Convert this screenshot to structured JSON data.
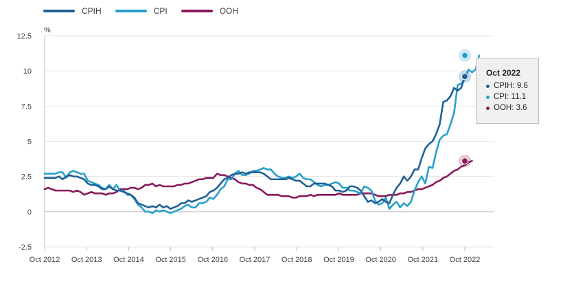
{
  "chart_data": {
    "type": "line",
    "title": "",
    "ylabel": "%",
    "xlabel": "",
    "ylim": [
      -2.5,
      12.5
    ],
    "yticks": [
      -2.5,
      0,
      2.5,
      5,
      7.5,
      10,
      12.5
    ],
    "ytick_labels": [
      "-2.5",
      "0",
      "2.5",
      "5",
      "7.5",
      "10",
      "12.5"
    ],
    "xtick_labels": [
      "Oct 2012",
      "Oct 2013",
      "Oct 2014",
      "Oct 2015",
      "Oct 2016",
      "Oct 2017",
      "Oct 2018",
      "Oct 2019",
      "Oct 2020",
      "Oct 2021",
      "Oct 2022"
    ],
    "grid": "horizontal",
    "legend_position": "top-left",
    "series": [
      {
        "name": "CPIH",
        "color": "#206095",
        "values": [
          2.4,
          2.4,
          2.4,
          2.4,
          2.5,
          2.3,
          2.5,
          2.6,
          2.5,
          2.5,
          2.4,
          2.3,
          2.0,
          1.9,
          1.9,
          1.8,
          1.6,
          1.6,
          1.8,
          1.6,
          1.5,
          1.5,
          1.4,
          1.3,
          1.2,
          1.0,
          0.6,
          0.5,
          0.4,
          0.3,
          0.4,
          0.3,
          0.5,
          0.3,
          0.4,
          0.2,
          0.3,
          0.4,
          0.6,
          0.6,
          0.8,
          0.7,
          0.8,
          0.9,
          1.0,
          1.1,
          1.4,
          1.5,
          1.7,
          2.0,
          2.3,
          2.4,
          2.6,
          2.7,
          2.7,
          2.8,
          2.7,
          2.8,
          2.8,
          2.8,
          2.8,
          2.7,
          2.5,
          2.3,
          2.3,
          2.3,
          2.3,
          2.3,
          2.4,
          2.3,
          2.2,
          2.2,
          2.0,
          1.8,
          1.8,
          2.0,
          2.0,
          2.0,
          2.0,
          1.9,
          1.8,
          1.5,
          1.5,
          1.4,
          1.5,
          1.8,
          1.8,
          1.7,
          1.5,
          1.1,
          0.7,
          0.8,
          0.6,
          0.7,
          0.9,
          0.7,
          0.6,
          1.2,
          1.7,
          2.0,
          2.5,
          2.2,
          2.5,
          3.0,
          3.0,
          3.8,
          4.5,
          4.8,
          5.0,
          5.5,
          6.2,
          7.8,
          7.9,
          8.2,
          8.8,
          8.6,
          8.8,
          9.6
        ]
      },
      {
        "name": "CPI",
        "color": "#27a0cc",
        "values": [
          2.7,
          2.7,
          2.7,
          2.7,
          2.8,
          2.8,
          2.4,
          2.8,
          2.9,
          2.8,
          2.7,
          2.7,
          2.2,
          2.1,
          2.0,
          1.9,
          1.7,
          1.6,
          1.9,
          1.6,
          1.9,
          1.5,
          1.5,
          1.2,
          1.2,
          0.9,
          0.5,
          0.3,
          0.0,
          0.0,
          -0.1,
          0.1,
          0.0,
          0.1,
          0.0,
          -0.1,
          0.0,
          0.1,
          0.2,
          0.4,
          0.5,
          0.3,
          0.3,
          0.6,
          0.6,
          0.7,
          1.0,
          0.9,
          1.2,
          1.6,
          1.8,
          2.3,
          2.3,
          2.7,
          2.9,
          2.6,
          2.6,
          2.7,
          2.9,
          2.9,
          3.0,
          3.1,
          3.0,
          3.0,
          2.7,
          2.5,
          2.4,
          2.4,
          2.5,
          2.4,
          2.5,
          2.7,
          2.4,
          2.3,
          2.3,
          2.1,
          1.9,
          1.8,
          1.9,
          1.9,
          2.0,
          2.1,
          2.0,
          1.7,
          1.7,
          1.5,
          1.5,
          1.4,
          1.3,
          1.8,
          1.7,
          1.5,
          0.8,
          0.5,
          0.6,
          1.0,
          0.2,
          0.5,
          0.7,
          0.3,
          0.6,
          0.4,
          0.7,
          1.5,
          2.1,
          2.5,
          2.0,
          3.2,
          3.1,
          4.2,
          5.1,
          5.4,
          5.5,
          6.2,
          7.0,
          9.0,
          9.1,
          9.4,
          10.1,
          9.9,
          10.1,
          11.1
        ]
      },
      {
        "name": "OOH",
        "color": "#871a5b",
        "values": [
          1.6,
          1.7,
          1.6,
          1.5,
          1.5,
          1.5,
          1.5,
          1.5,
          1.4,
          1.5,
          1.4,
          1.2,
          1.3,
          1.4,
          1.3,
          1.3,
          1.3,
          1.2,
          1.3,
          1.3,
          1.4,
          1.6,
          1.6,
          1.6,
          1.7,
          1.7,
          1.6,
          1.7,
          1.9,
          1.9,
          2.0,
          1.8,
          1.9,
          1.8,
          1.8,
          1.8,
          1.8,
          1.9,
          1.9,
          2.0,
          2.0,
          2.1,
          2.2,
          2.3,
          2.3,
          2.4,
          2.4,
          2.4,
          2.7,
          2.6,
          2.6,
          2.5,
          2.4,
          2.3,
          2.1,
          2.0,
          2.0,
          1.9,
          1.9,
          1.7,
          1.6,
          1.4,
          1.2,
          1.2,
          1.2,
          1.2,
          1.1,
          1.1,
          1.1,
          1.0,
          1.0,
          1.1,
          1.1,
          1.1,
          1.2,
          1.1,
          1.2,
          1.2,
          1.2,
          1.2,
          1.2,
          1.2,
          1.3,
          1.2,
          1.2,
          1.2,
          1.2,
          1.2,
          1.3,
          1.3,
          1.3,
          1.3,
          1.2,
          1.1,
          1.1,
          1.1,
          1.2,
          1.2,
          1.2,
          1.3,
          1.3,
          1.4,
          1.4,
          1.5,
          1.6,
          1.6,
          1.7,
          1.8,
          1.9,
          2.1,
          2.2,
          2.4,
          2.5,
          2.7,
          2.9,
          3.0,
          3.2,
          3.3,
          3.5,
          3.6
        ]
      }
    ],
    "tooltip": {
      "title": "Oct 2022",
      "rows": [
        {
          "label": "CPIH: 9.6",
          "color": "#206095"
        },
        {
          "label": "CPI: 11.1",
          "color": "#27a0cc"
        },
        {
          "label": "OOH: 3.6",
          "color": "#871a5b"
        }
      ]
    }
  }
}
